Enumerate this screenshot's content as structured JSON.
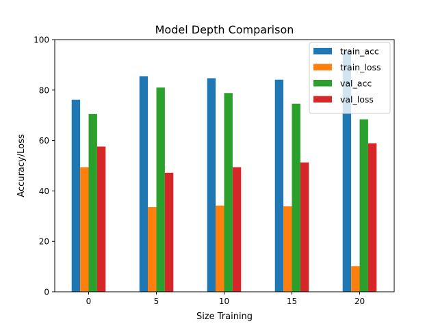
{
  "chart_data": {
    "type": "bar",
    "title": "Model Depth Comparison",
    "xlabel": "Size Training",
    "ylabel": "Accuracy/Loss",
    "categories": [
      "0",
      "5",
      "10",
      "15",
      "20"
    ],
    "ylim": [
      0,
      100
    ],
    "yticks": [
      0,
      20,
      40,
      60,
      80,
      100
    ],
    "grid": false,
    "legend_position": "upper right",
    "series": [
      {
        "name": "train_acc",
        "color": "#1f77b4",
        "values": [
          76.2,
          85.5,
          84.7,
          84.1,
          95.6
        ]
      },
      {
        "name": "train_loss",
        "color": "#ff7f0e",
        "values": [
          49.4,
          33.6,
          34.2,
          33.9,
          10.2
        ]
      },
      {
        "name": "val_acc",
        "color": "#2ca02c",
        "values": [
          70.5,
          81.0,
          78.8,
          74.6,
          68.4
        ]
      },
      {
        "name": "val_loss",
        "color": "#d62728",
        "values": [
          57.6,
          47.2,
          49.4,
          51.3,
          58.9
        ]
      }
    ]
  }
}
